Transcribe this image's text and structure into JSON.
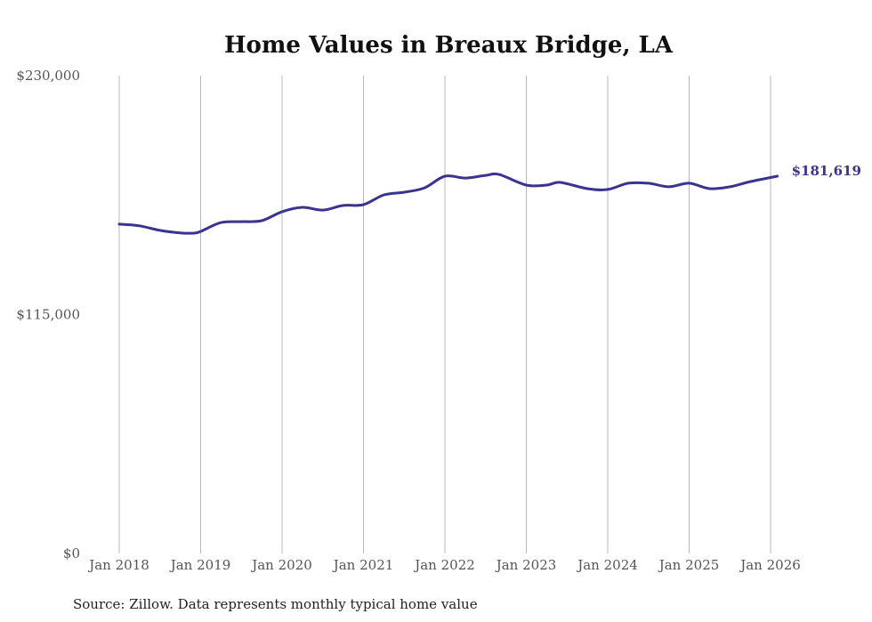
{
  "chart_data": {
    "type": "line",
    "title": "Home Values in Breaux Bridge, LA",
    "xlabel": "",
    "ylabel": "",
    "ylim": [
      0,
      230000
    ],
    "yticks": [
      {
        "value": 0,
        "label": "$0"
      },
      {
        "value": 115000,
        "label": "$115,000"
      },
      {
        "value": 230000,
        "label": "$230,000"
      }
    ],
    "xlim": [
      2018.0,
      2026.083
    ],
    "xticks": [
      {
        "value": 2018,
        "label": "Jan 2018"
      },
      {
        "value": 2019,
        "label": "Jan 2019"
      },
      {
        "value": 2020,
        "label": "Jan 2020"
      },
      {
        "value": 2021,
        "label": "Jan 2021"
      },
      {
        "value": 2022,
        "label": "Jan 2022"
      },
      {
        "value": 2023,
        "label": "Jan 2023"
      },
      {
        "value": 2024,
        "label": "Jan 2024"
      },
      {
        "value": 2025,
        "label": "Jan 2025"
      },
      {
        "value": 2026,
        "label": "Jan 2026"
      }
    ],
    "grid": "vertical at x ticks",
    "series": [
      {
        "name": "Typical home value",
        "color": "#3a3390",
        "x": [
          2018.0,
          2018.25,
          2018.5,
          2018.75,
          2018.917,
          2019.0,
          2019.25,
          2019.5,
          2019.75,
          2020.0,
          2020.25,
          2020.5,
          2020.75,
          2021.0,
          2021.25,
          2021.5,
          2021.75,
          2022.0,
          2022.25,
          2022.5,
          2022.667,
          2023.0,
          2023.25,
          2023.417,
          2023.75,
          2024.0,
          2024.25,
          2024.5,
          2024.75,
          2025.0,
          2025.25,
          2025.5,
          2025.75,
          2026.083
        ],
        "values": [
          158500,
          157700,
          155500,
          154300,
          154200,
          155000,
          159300,
          159700,
          160200,
          164500,
          166600,
          165300,
          167500,
          167900,
          172600,
          173900,
          176000,
          181600,
          180700,
          182000,
          182400,
          177300,
          177300,
          178600,
          175600,
          175200,
          178200,
          178200,
          176500,
          178200,
          175600,
          176500,
          179000,
          181619
        ]
      }
    ],
    "end_label": "$181,619",
    "source": "Source: Zillow. Data represents monthly typical home value"
  }
}
